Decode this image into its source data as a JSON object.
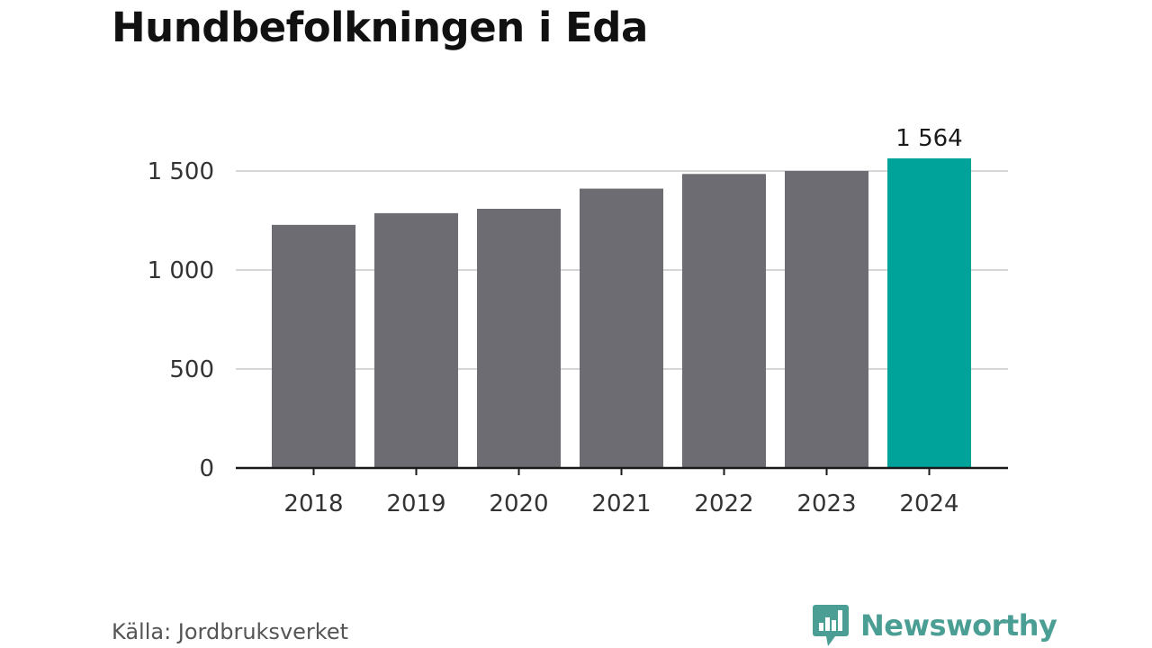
{
  "title": "Hundbefolkningen i Eda",
  "source": "Källa: Jordbruksverket",
  "brand": "Newsworthy",
  "colors": {
    "bar": "#6d6c72",
    "highlight": "#00a39a",
    "grid": "#d6d6d6",
    "axis": "#1a1a1a",
    "brand": "#4a9e93"
  },
  "chart_data": {
    "type": "bar",
    "categories": [
      "2018",
      "2019",
      "2020",
      "2021",
      "2022",
      "2023",
      "2024"
    ],
    "values": [
      1228,
      1287,
      1309,
      1411,
      1485,
      1500,
      1564
    ],
    "highlight_index": 6,
    "data_labels": [
      {
        "index": 6,
        "text": "1 564"
      }
    ],
    "ylim": [
      0,
      1500
    ],
    "yticks": [
      0,
      500,
      1000,
      1500
    ],
    "ytick_labels": [
      "0",
      "500",
      "1 000",
      "1 500"
    ],
    "grid": true,
    "legend": "none"
  }
}
